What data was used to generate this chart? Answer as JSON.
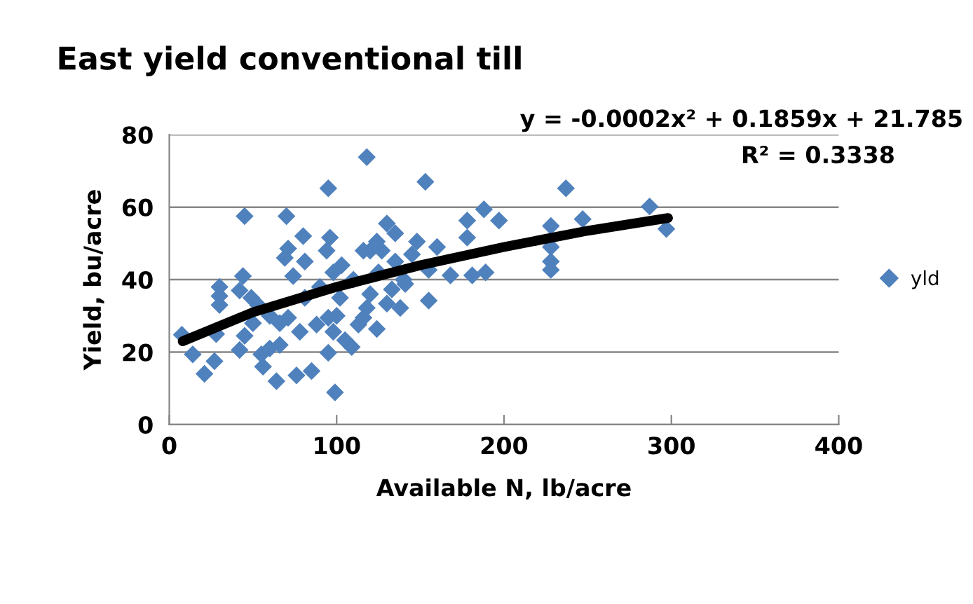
{
  "chart_data": {
    "type": "scatter",
    "title": "East yield conventional till",
    "xlabel": "Available N, lb/acre",
    "ylabel": "Yield, bu/acre",
    "xlim": [
      0,
      400
    ],
    "xticks": [
      0,
      100,
      200,
      300,
      400
    ],
    "ylim": [
      0,
      80
    ],
    "yticks": [
      0,
      20,
      40,
      60,
      80
    ],
    "grid": "y",
    "legend": "right",
    "marker": "diamond",
    "annotations": [
      "y = -0.0002x² + 0.1859x + 21.785",
      "R² = 0.3338"
    ],
    "series": [
      {
        "name": "yld",
        "color": "#4f81bd",
        "x": [
          7.5,
          14,
          21,
          27,
          30,
          30,
          30,
          28,
          45,
          44,
          42,
          42,
          45,
          49,
          53,
          55,
          56,
          60,
          64,
          66,
          66,
          70,
          69,
          71,
          74,
          71,
          76,
          78,
          80,
          81,
          81,
          85,
          88,
          94,
          95,
          96,
          95,
          95,
          98,
          99,
          98,
          102,
          103,
          105,
          109,
          113,
          118,
          120,
          118,
          116,
          124,
          116,
          130,
          127,
          124,
          135,
          133,
          130,
          138,
          141,
          153,
          148,
          155,
          155,
          160,
          168,
          178,
          178,
          181,
          188,
          197,
          189,
          228,
          228,
          228,
          228,
          237,
          247,
          287,
          297,
          135,
          140,
          145,
          125,
          110,
          90,
          60,
          50,
          120,
          100
        ],
        "values": [
          24.8,
          19.4,
          14,
          17.5,
          38,
          35.5,
          33,
          25,
          57.5,
          41,
          37,
          20.6,
          24.5,
          35,
          33,
          19.4,
          16,
          21,
          12,
          22,
          28,
          57.5,
          46,
          48.6,
          41,
          29.5,
          13.6,
          25.6,
          52,
          45,
          35,
          14.8,
          27.6,
          48,
          65.2,
          51.6,
          29.5,
          19.8,
          25.6,
          8.9,
          42,
          35,
          44,
          23.3,
          21.4,
          27.6,
          73.8,
          48,
          32.2,
          29.5,
          26.4,
          48,
          55.5,
          48,
          50.5,
          52.8,
          37.3,
          33.4,
          32.2,
          38.8,
          67,
          50.5,
          42.7,
          34.2,
          49,
          41.2,
          56.3,
          51.6,
          41.2,
          59.4,
          56.3,
          42,
          54.8,
          49,
          45,
          42.7,
          65.2,
          56.7,
          60.2,
          54,
          45,
          40,
          47,
          42,
          40,
          38,
          30,
          28,
          36,
          30
        ]
      },
      {
        "color": "#000000",
        "type": "line",
        "marker": "none",
        "line_style": "solid",
        "x": [
          8,
          50,
          100,
          150,
          200,
          250,
          298
        ],
        "values": [
          23,
          31,
          38,
          44,
          49,
          53.5,
          57
        ]
      }
    ]
  }
}
